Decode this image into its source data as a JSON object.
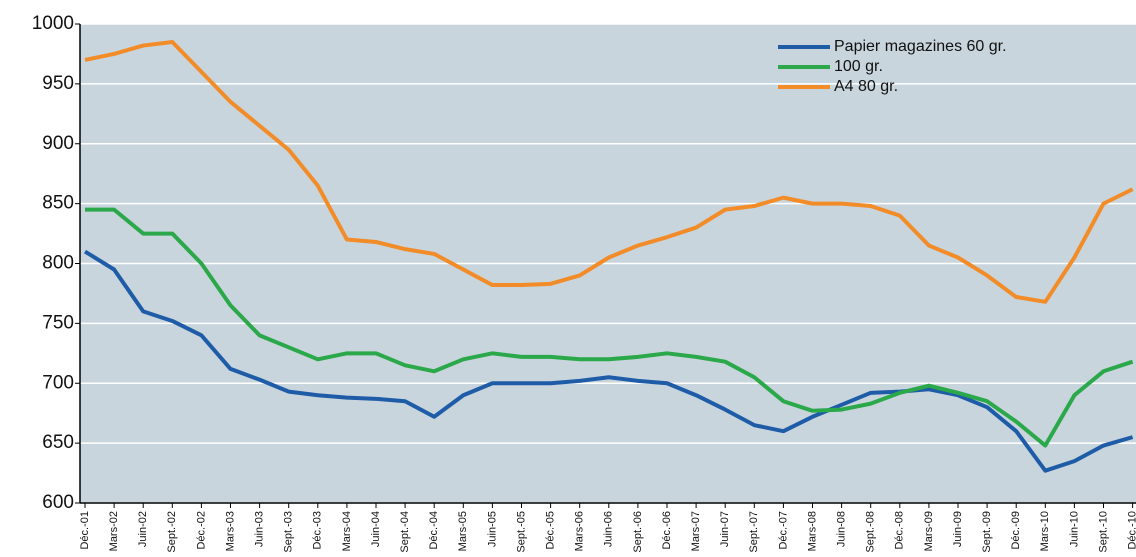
{
  "chart_data": {
    "type": "line",
    "categories": [
      "Déc.-01",
      "Mars-02",
      "Juin-02",
      "Sept.-02",
      "Déc.-02",
      "Mars-03",
      "Juin-03",
      "Sept.-03",
      "Déc.-03",
      "Mars-04",
      "Juin-04",
      "Sept.-04",
      "Déc.-04",
      "Mars-05",
      "Juin-05",
      "Sept.-05",
      "Déc.-05",
      "Mars-06",
      "Juin-06",
      "Sept.-06",
      "Déc.-06",
      "Mars-07",
      "Juin-07",
      "Sept.-07",
      "Déc.-07",
      "Mars-08",
      "Juin-08",
      "Sept.-08",
      "Déc.-08",
      "Mars-09",
      "Juin-09",
      "Sept.-09",
      "Déc.-09",
      "Mars-10",
      "Juin-10",
      "Sept.-10",
      "Déc.-10"
    ],
    "series": [
      {
        "name": "Papier magazines 60 gr.",
        "color": "#1f5ca8",
        "values": [
          810,
          795,
          760,
          752,
          740,
          712,
          703,
          693,
          690,
          688,
          687,
          685,
          672,
          690,
          700,
          700,
          700,
          702,
          705,
          702,
          700,
          690,
          678,
          665,
          660,
          672,
          682,
          692,
          693,
          695,
          690,
          680,
          660,
          627,
          635,
          648,
          655
        ]
      },
      {
        "name": "100 gr.",
        "color": "#2aa84a",
        "values": [
          845,
          845,
          825,
          825,
          800,
          765,
          740,
          730,
          720,
          725,
          725,
          715,
          710,
          720,
          725,
          722,
          722,
          720,
          720,
          722,
          725,
          722,
          718,
          705,
          685,
          677,
          678,
          683,
          692,
          698,
          692,
          685,
          668,
          648,
          690,
          710,
          718
        ]
      },
      {
        "name": "A4 80 gr.",
        "color": "#f28c28",
        "values": [
          970,
          975,
          982,
          985,
          960,
          935,
          915,
          895,
          865,
          820,
          818,
          812,
          808,
          795,
          782,
          782,
          783,
          790,
          805,
          815,
          822,
          830,
          845,
          848,
          855,
          850,
          850,
          848,
          840,
          815,
          805,
          790,
          772,
          768,
          805,
          850,
          862
        ]
      }
    ],
    "ylim": [
      600,
      1000
    ],
    "yticks": [
      600,
      650,
      700,
      750,
      800,
      850,
      900,
      950,
      1000
    ],
    "grid": true
  }
}
